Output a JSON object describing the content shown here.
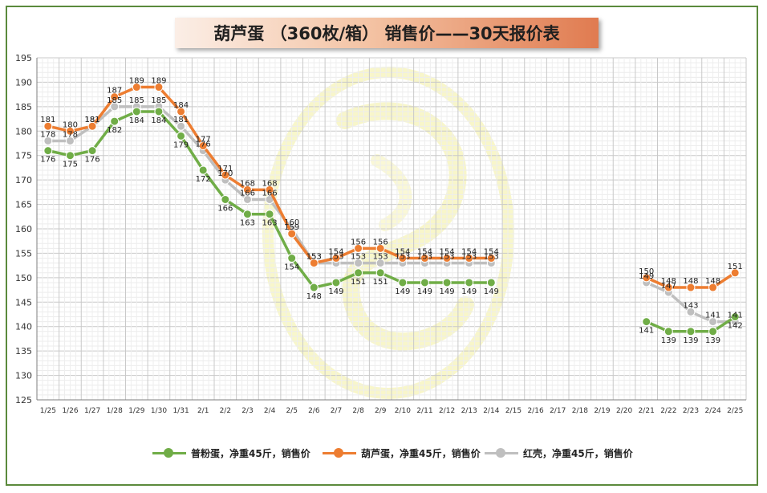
{
  "title": "葫芦蛋 （360枚/箱） 销售价——30天报价表",
  "chart_data": {
    "type": "line",
    "title": "葫芦蛋 （360枚/箱） 销售价——30天报价表",
    "xlabel": "",
    "ylabel": "",
    "ylim": [
      125,
      195
    ],
    "yticks": [
      125,
      130,
      135,
      140,
      145,
      150,
      155,
      160,
      165,
      170,
      175,
      180,
      185,
      190,
      195
    ],
    "grid": true,
    "legend_position": "bottom",
    "categories": [
      "1/25",
      "1/26",
      "1/27",
      "1/28",
      "1/29",
      "1/30",
      "1/31",
      "2/1",
      "2/2",
      "2/3",
      "2/4",
      "2/5",
      "2/6",
      "2/7",
      "2/8",
      "2/9",
      "2/10",
      "2/11",
      "2/12",
      "2/13",
      "2/14",
      "2/15",
      "2/16",
      "2/17",
      "2/18",
      "2/19",
      "2/20",
      "2/21",
      "2/22",
      "2/23",
      "2/24",
      "2/25"
    ],
    "series": [
      {
        "name": "普粉蛋，净重45斤，销售价",
        "color": "#70ad47",
        "values": [
          176,
          175,
          176,
          182,
          184,
          184,
          179,
          172,
          166,
          163,
          163,
          154,
          148,
          149,
          151,
          151,
          149,
          149,
          149,
          149,
          149,
          null,
          null,
          null,
          null,
          null,
          null,
          141,
          139,
          139,
          139,
          142
        ]
      },
      {
        "name": "葫芦蛋，净重45斤，销售价",
        "color": "#ed7d31",
        "values": [
          181,
          180,
          181,
          187,
          189,
          189,
          184,
          177,
          171,
          168,
          168,
          159,
          153,
          154,
          156,
          156,
          154,
          154,
          154,
          154,
          154,
          null,
          null,
          null,
          null,
          null,
          null,
          150,
          148,
          148,
          148,
          151
        ]
      },
      {
        "name": "红壳，净重45斤，销售价",
        "color": "#bfbfbf",
        "values": [
          178,
          178,
          181,
          185,
          185,
          185,
          181,
          176,
          170,
          166,
          166,
          160,
          153,
          153,
          153,
          153,
          153,
          153,
          153,
          153,
          153,
          null,
          null,
          null,
          null,
          null,
          null,
          149,
          147,
          143,
          141,
          141
        ]
      }
    ]
  }
}
